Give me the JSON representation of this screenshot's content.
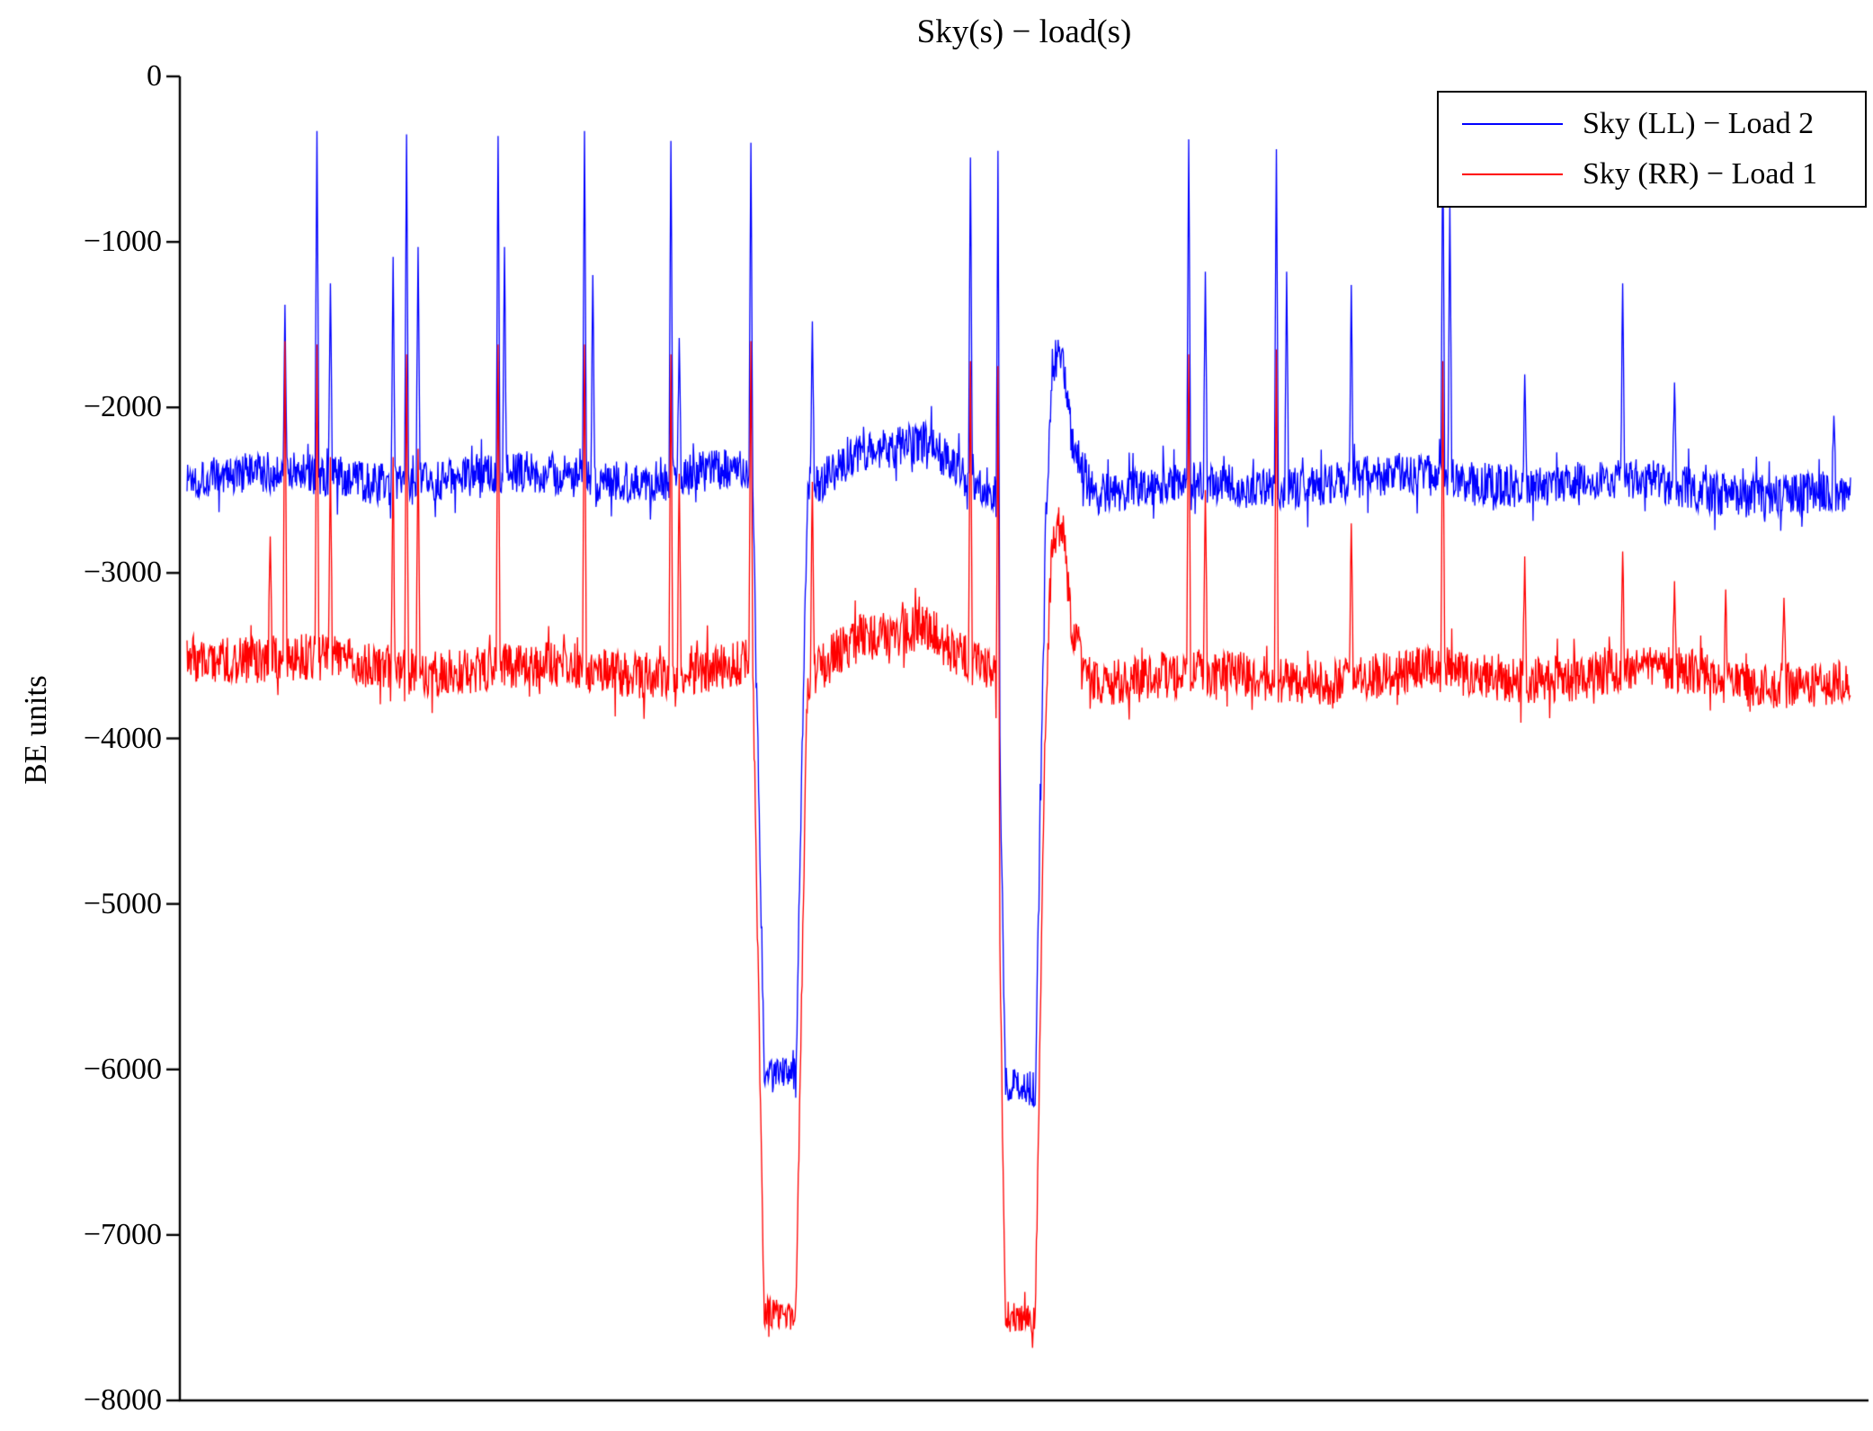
{
  "chart_data": {
    "type": "line",
    "title": "Sky(s) − load(s)",
    "xlabel": "",
    "ylabel": "BE units",
    "ylim": [
      -8000,
      0
    ],
    "xlim_normalized": [
      0,
      1
    ],
    "grid": false,
    "legend_position": "top-right",
    "x_tick_labels": [],
    "yticks": [
      {
        "value": 0,
        "label": "0"
      },
      {
        "value": -1000,
        "label": "−1000"
      },
      {
        "value": -2000,
        "label": "−2000"
      },
      {
        "value": -3000,
        "label": "−3000"
      },
      {
        "value": -4000,
        "label": "−4000"
      },
      {
        "value": -5000,
        "label": "−5000"
      },
      {
        "value": -6000,
        "label": "−6000"
      },
      {
        "value": -7000,
        "label": "−7000"
      },
      {
        "value": -8000,
        "label": "−8000"
      }
    ],
    "n_samples": 2600,
    "series": [
      {
        "name": "Sky (LL) − Load 2",
        "color": "#0000ff",
        "seed": 1337,
        "noise": 128,
        "noise_dip": 105,
        "baseline_mean": -2420,
        "dip_level": -6060,
        "profile": [
          [
            0,
            -2380
          ],
          [
            0.05,
            -2400
          ],
          [
            0.34,
            -2440
          ],
          [
            0.347,
            -6050
          ],
          [
            0.366,
            -6050
          ],
          [
            0.373,
            -2500
          ],
          [
            0.39,
            -2350
          ],
          [
            0.405,
            -2250
          ],
          [
            0.445,
            -2230
          ],
          [
            0.462,
            -2400
          ],
          [
            0.486,
            -2520
          ],
          [
            0.492,
            -6080
          ],
          [
            0.51,
            -6080
          ],
          [
            0.516,
            -2700
          ],
          [
            0.52,
            -1700
          ],
          [
            0.526,
            -1620
          ],
          [
            0.532,
            -2150
          ],
          [
            0.545,
            -2480
          ],
          [
            0.7,
            -2450
          ],
          [
            0.9,
            -2480
          ],
          [
            1,
            -2520
          ]
        ],
        "spikes": [
          [
            0.059,
            -1380
          ],
          [
            0.078,
            -330
          ],
          [
            0.086,
            -1250
          ],
          [
            0.124,
            -1090
          ],
          [
            0.132,
            -350
          ],
          [
            0.139,
            -1030
          ],
          [
            0.187,
            -360
          ],
          [
            0.191,
            -1030
          ],
          [
            0.239,
            -330
          ],
          [
            0.244,
            -1200
          ],
          [
            0.291,
            -390
          ],
          [
            0.296,
            -1580
          ],
          [
            0.339,
            -400
          ],
          [
            0.376,
            -1480
          ],
          [
            0.471,
            -490
          ],
          [
            0.4875,
            -450
          ],
          [
            0.602,
            -380
          ],
          [
            0.612,
            -1180
          ],
          [
            0.655,
            -440
          ],
          [
            0.661,
            -1180
          ],
          [
            0.7,
            -1260
          ],
          [
            0.755,
            -350
          ],
          [
            0.759,
            -760
          ],
          [
            0.804,
            -1800
          ],
          [
            0.863,
            -1250
          ],
          [
            0.894,
            -1850
          ],
          [
            0.99,
            -2050
          ]
        ]
      },
      {
        "name": "Sky (RR) − Load 1",
        "color": "#ff0000",
        "seed": 777,
        "noise": 142,
        "noise_dip": 100,
        "baseline_mean": -3570,
        "dip_level": -7530,
        "profile": [
          [
            0,
            -3500
          ],
          [
            0.05,
            -3540
          ],
          [
            0.34,
            -3580
          ],
          [
            0.347,
            -7520
          ],
          [
            0.366,
            -7520
          ],
          [
            0.373,
            -3680
          ],
          [
            0.39,
            -3490
          ],
          [
            0.405,
            -3380
          ],
          [
            0.445,
            -3340
          ],
          [
            0.462,
            -3540
          ],
          [
            0.486,
            -3650
          ],
          [
            0.492,
            -7530
          ],
          [
            0.51,
            -7530
          ],
          [
            0.516,
            -3850
          ],
          [
            0.52,
            -2800
          ],
          [
            0.526,
            -2650
          ],
          [
            0.532,
            -3350
          ],
          [
            0.545,
            -3630
          ],
          [
            0.7,
            -3600
          ],
          [
            0.9,
            -3640
          ],
          [
            1,
            -3690
          ]
        ],
        "spikes": [
          [
            0.05,
            -2780
          ],
          [
            0.059,
            -1600
          ],
          [
            0.078,
            -1620
          ],
          [
            0.086,
            -2300
          ],
          [
            0.124,
            -2300
          ],
          [
            0.132,
            -1680
          ],
          [
            0.139,
            -2250
          ],
          [
            0.187,
            -1620
          ],
          [
            0.239,
            -1620
          ],
          [
            0.291,
            -1680
          ],
          [
            0.296,
            -2400
          ],
          [
            0.339,
            -1600
          ],
          [
            0.376,
            -2450
          ],
          [
            0.471,
            -1720
          ],
          [
            0.4875,
            -1750
          ],
          [
            0.602,
            -1680
          ],
          [
            0.612,
            -2500
          ],
          [
            0.655,
            -1650
          ],
          [
            0.7,
            -2700
          ],
          [
            0.755,
            -1720
          ],
          [
            0.804,
            -2900
          ],
          [
            0.863,
            -2870
          ],
          [
            0.894,
            -3050
          ],
          [
            0.925,
            -3100
          ],
          [
            0.96,
            -3150
          ]
        ]
      }
    ]
  }
}
